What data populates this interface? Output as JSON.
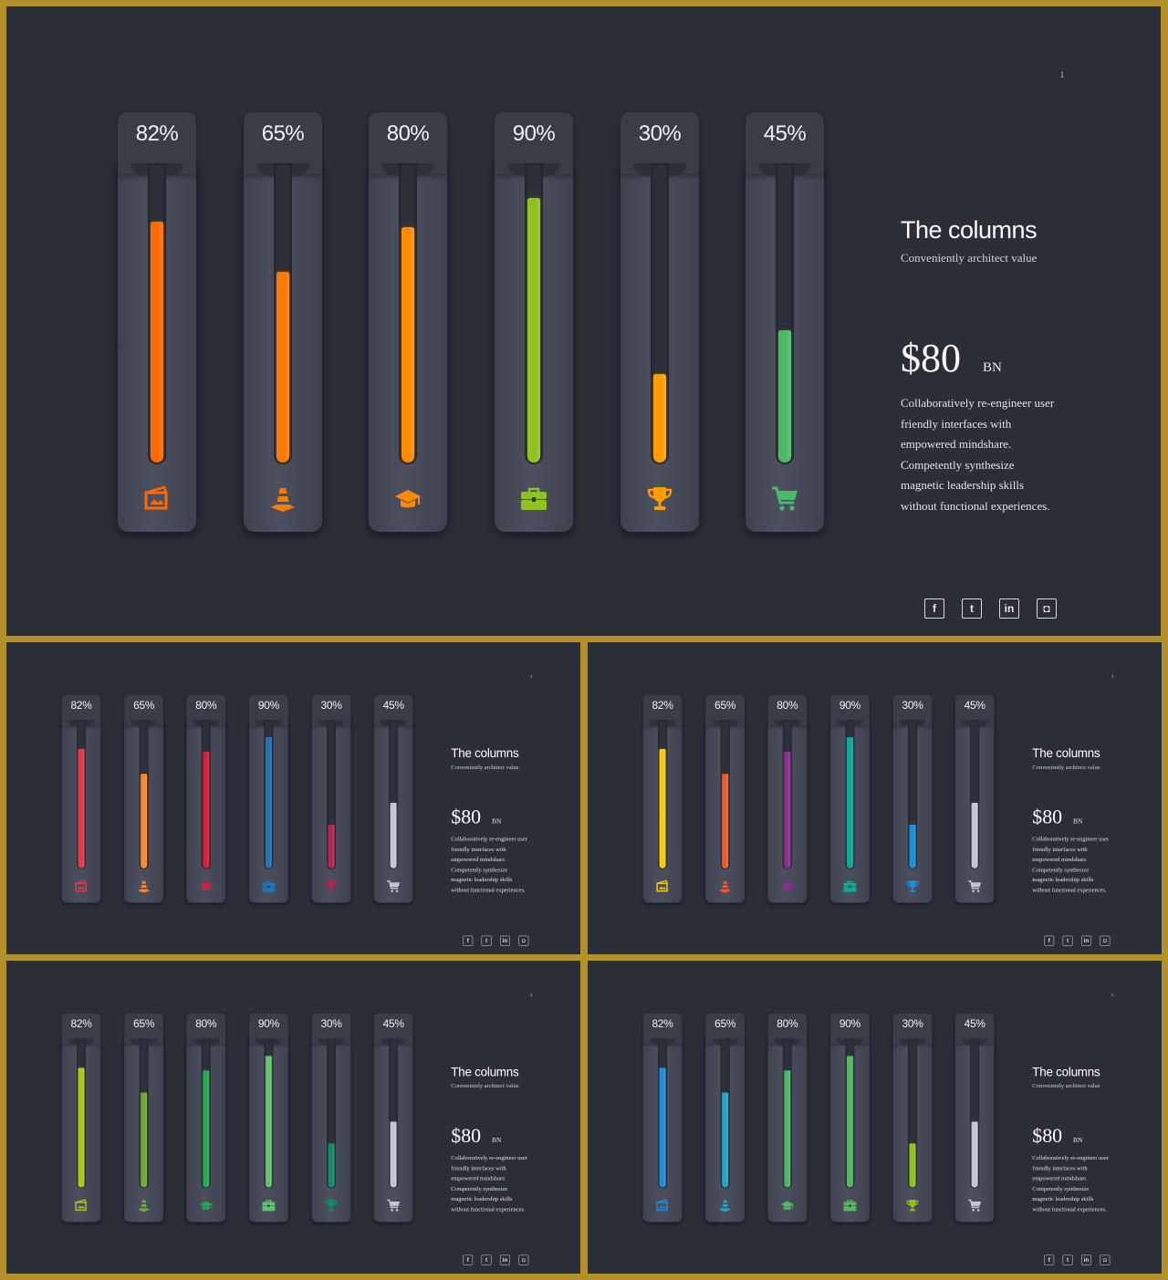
{
  "colors": {
    "frame": "#b3902a",
    "background": "#2b2d37",
    "column": "#454857",
    "slot": "#2d2f39"
  },
  "social_icons": [
    "facebook-icon",
    "twitter-icon",
    "linkedin-icon",
    "instagram-icon"
  ],
  "slides": [
    {
      "number": "1",
      "title": "The columns",
      "subtitle": "Conveniently architect value",
      "amount": "$80",
      "amount_unit": "BN",
      "body": "Collaboratively re-engineer user friendly interfaces with empowered mindshare. Competently synthesize magnetic leadership skills without functional experiences.",
      "columns": [
        {
          "label": "82%",
          "value": 82,
          "color": "#ff6a00",
          "icon": "image-icon"
        },
        {
          "label": "65%",
          "value": 65,
          "color": "#ff7a00",
          "icon": "traffic-cone-icon"
        },
        {
          "label": "80%",
          "value": 80,
          "color": "#ff8c00",
          "icon": "graduation-cap-icon"
        },
        {
          "label": "90%",
          "value": 90,
          "color": "#8dc21f",
          "icon": "briefcase-icon"
        },
        {
          "label": "30%",
          "value": 30,
          "color": "#ff9d00",
          "icon": "trophy-icon"
        },
        {
          "label": "45%",
          "value": 45,
          "color": "#4cb968",
          "icon": "shopping-cart-icon"
        }
      ]
    },
    {
      "number": "2",
      "title": "The columns",
      "subtitle": "Conveniently architect value",
      "amount": "$80",
      "amount_unit": "BN",
      "body": "Collaboratively re-engineer user friendly interfaces with empowered mindshare. Competently synthesize magnetic leadership skills without functional experiences.",
      "columns": [
        {
          "label": "82%",
          "value": 82,
          "color": "#e2394b",
          "icon": "image-icon"
        },
        {
          "label": "65%",
          "value": 65,
          "color": "#f7882f",
          "icon": "traffic-cone-icon"
        },
        {
          "label": "80%",
          "value": 80,
          "color": "#d3213a",
          "icon": "graduation-cap-icon"
        },
        {
          "label": "90%",
          "value": 90,
          "color": "#1f74b4",
          "icon": "briefcase-icon"
        },
        {
          "label": "30%",
          "value": 30,
          "color": "#b5244b",
          "icon": "trophy-icon"
        },
        {
          "label": "45%",
          "value": 45,
          "color": "#c3c6d0",
          "icon": "shopping-cart-icon"
        }
      ]
    },
    {
      "number": "3",
      "title": "The columns",
      "subtitle": "Conveniently architect value",
      "amount": "$80",
      "amount_unit": "BN",
      "body": "Collaboratively re-engineer user friendly interfaces with empowered mindshare. Competently synthesize magnetic leadership skills without functional experiences.",
      "columns": [
        {
          "label": "82%",
          "value": 82,
          "color": "#f9c80e",
          "icon": "image-icon"
        },
        {
          "label": "65%",
          "value": 65,
          "color": "#f05a28",
          "icon": "traffic-cone-icon"
        },
        {
          "label": "80%",
          "value": 80,
          "color": "#8e2c96",
          "icon": "graduation-cap-icon"
        },
        {
          "label": "90%",
          "value": 90,
          "color": "#12a793",
          "icon": "briefcase-icon"
        },
        {
          "label": "30%",
          "value": 30,
          "color": "#1a8fd8",
          "icon": "trophy-icon"
        },
        {
          "label": "45%",
          "value": 45,
          "color": "#c3c6d0",
          "icon": "shopping-cart-icon"
        }
      ]
    },
    {
      "number": "4",
      "title": "The columns",
      "subtitle": "Conveniently architect value",
      "amount": "$80",
      "amount_unit": "BN",
      "body": "Collaboratively re-engineer user friendly interfaces with empowered mindshare. Competently synthesize magnetic leadership skills without functional experiences.",
      "columns": [
        {
          "label": "82%",
          "value": 82,
          "color": "#a8c91b",
          "icon": "image-icon"
        },
        {
          "label": "65%",
          "value": 65,
          "color": "#6ea93a",
          "icon": "traffic-cone-icon"
        },
        {
          "label": "80%",
          "value": 80,
          "color": "#2aa653",
          "icon": "graduation-cap-icon"
        },
        {
          "label": "90%",
          "value": 90,
          "color": "#5ec36a",
          "icon": "briefcase-icon"
        },
        {
          "label": "30%",
          "value": 30,
          "color": "#0f8c63",
          "icon": "trophy-icon"
        },
        {
          "label": "45%",
          "value": 45,
          "color": "#c3c6d0",
          "icon": "shopping-cart-icon"
        }
      ]
    },
    {
      "number": "5",
      "title": "The columns",
      "subtitle": "Conveniently architect value",
      "amount": "$80",
      "amount_unit": "BN",
      "body": "Collaboratively re-engineer user friendly interfaces with empowered mindshare. Competently synthesize magnetic leadership skills without functional experiences.",
      "columns": [
        {
          "label": "82%",
          "value": 82,
          "color": "#1f8fd8",
          "icon": "image-icon"
        },
        {
          "label": "65%",
          "value": 65,
          "color": "#22a6c8",
          "icon": "traffic-cone-icon"
        },
        {
          "label": "80%",
          "value": 80,
          "color": "#4cb968",
          "icon": "graduation-cap-icon"
        },
        {
          "label": "90%",
          "value": 90,
          "color": "#52b85e",
          "icon": "briefcase-icon"
        },
        {
          "label": "30%",
          "value": 30,
          "color": "#8dc21f",
          "icon": "trophy-icon"
        },
        {
          "label": "45%",
          "value": 45,
          "color": "#c3c6d0",
          "icon": "shopping-cart-icon"
        }
      ]
    }
  ]
}
